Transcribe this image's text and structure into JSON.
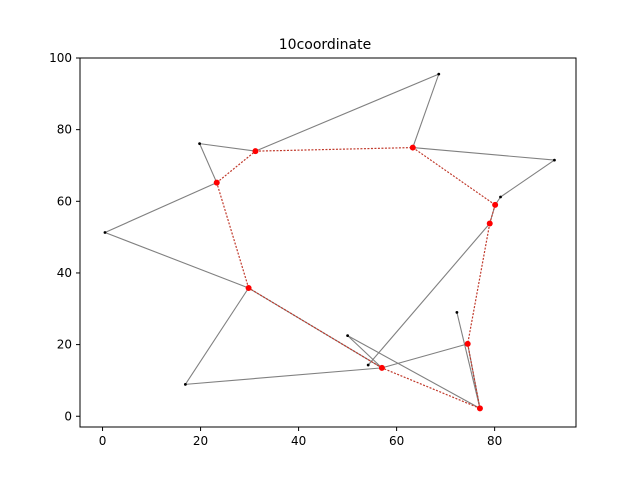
{
  "chart_data": {
    "type": "line",
    "title": "10coordinate",
    "xlabel": "",
    "ylabel": "",
    "xlim": [
      -4.6,
      96.6
    ],
    "ylim": [
      -3,
      100
    ],
    "x_ticks": [
      0,
      20,
      40,
      60,
      80
    ],
    "y_ticks": [
      0,
      20,
      40,
      60,
      80,
      100
    ],
    "grid": false,
    "points": [
      {
        "x": 0.5,
        "y": 51.3
      },
      {
        "x": 19.8,
        "y": 76.1
      },
      {
        "x": 23.3,
        "y": 65.2
      },
      {
        "x": 31.2,
        "y": 74.0
      },
      {
        "x": 68.6,
        "y": 95.5
      },
      {
        "x": 63.3,
        "y": 75.0
      },
      {
        "x": 92.2,
        "y": 71.5
      },
      {
        "x": 81.2,
        "y": 61.2
      },
      {
        "x": 80.1,
        "y": 59.0
      },
      {
        "x": 79.0,
        "y": 53.8
      },
      {
        "x": 54.2,
        "y": 14.3
      },
      {
        "x": 74.5,
        "y": 20.2
      },
      {
        "x": 72.3,
        "y": 29.0
      },
      {
        "x": 77.0,
        "y": 2.2
      },
      {
        "x": 57.0,
        "y": 13.5
      },
      {
        "x": 50.0,
        "y": 22.5
      },
      {
        "x": 29.8,
        "y": 35.8
      },
      {
        "x": 16.9,
        "y": 8.9
      }
    ],
    "gray_edges": [
      [
        0,
        2
      ],
      [
        2,
        1
      ],
      [
        1,
        3
      ],
      [
        3,
        4
      ],
      [
        4,
        5
      ],
      [
        5,
        6
      ],
      [
        6,
        7
      ],
      [
        7,
        8
      ],
      [
        8,
        9
      ],
      [
        9,
        10
      ],
      [
        11,
        13
      ],
      [
        12,
        13
      ],
      [
        13,
        15
      ],
      [
        15,
        14
      ],
      [
        14,
        16
      ],
      [
        16,
        0
      ],
      [
        16,
        17
      ],
      [
        17,
        14
      ],
      [
        14,
        11
      ]
    ],
    "red_route": [
      2,
      3,
      5,
      8,
      9,
      11,
      13,
      14,
      16,
      2
    ],
    "colors": {
      "edge": "#808080",
      "route": "#c0392b",
      "red_point": "#ff0000",
      "black_point": "#000000"
    }
  }
}
